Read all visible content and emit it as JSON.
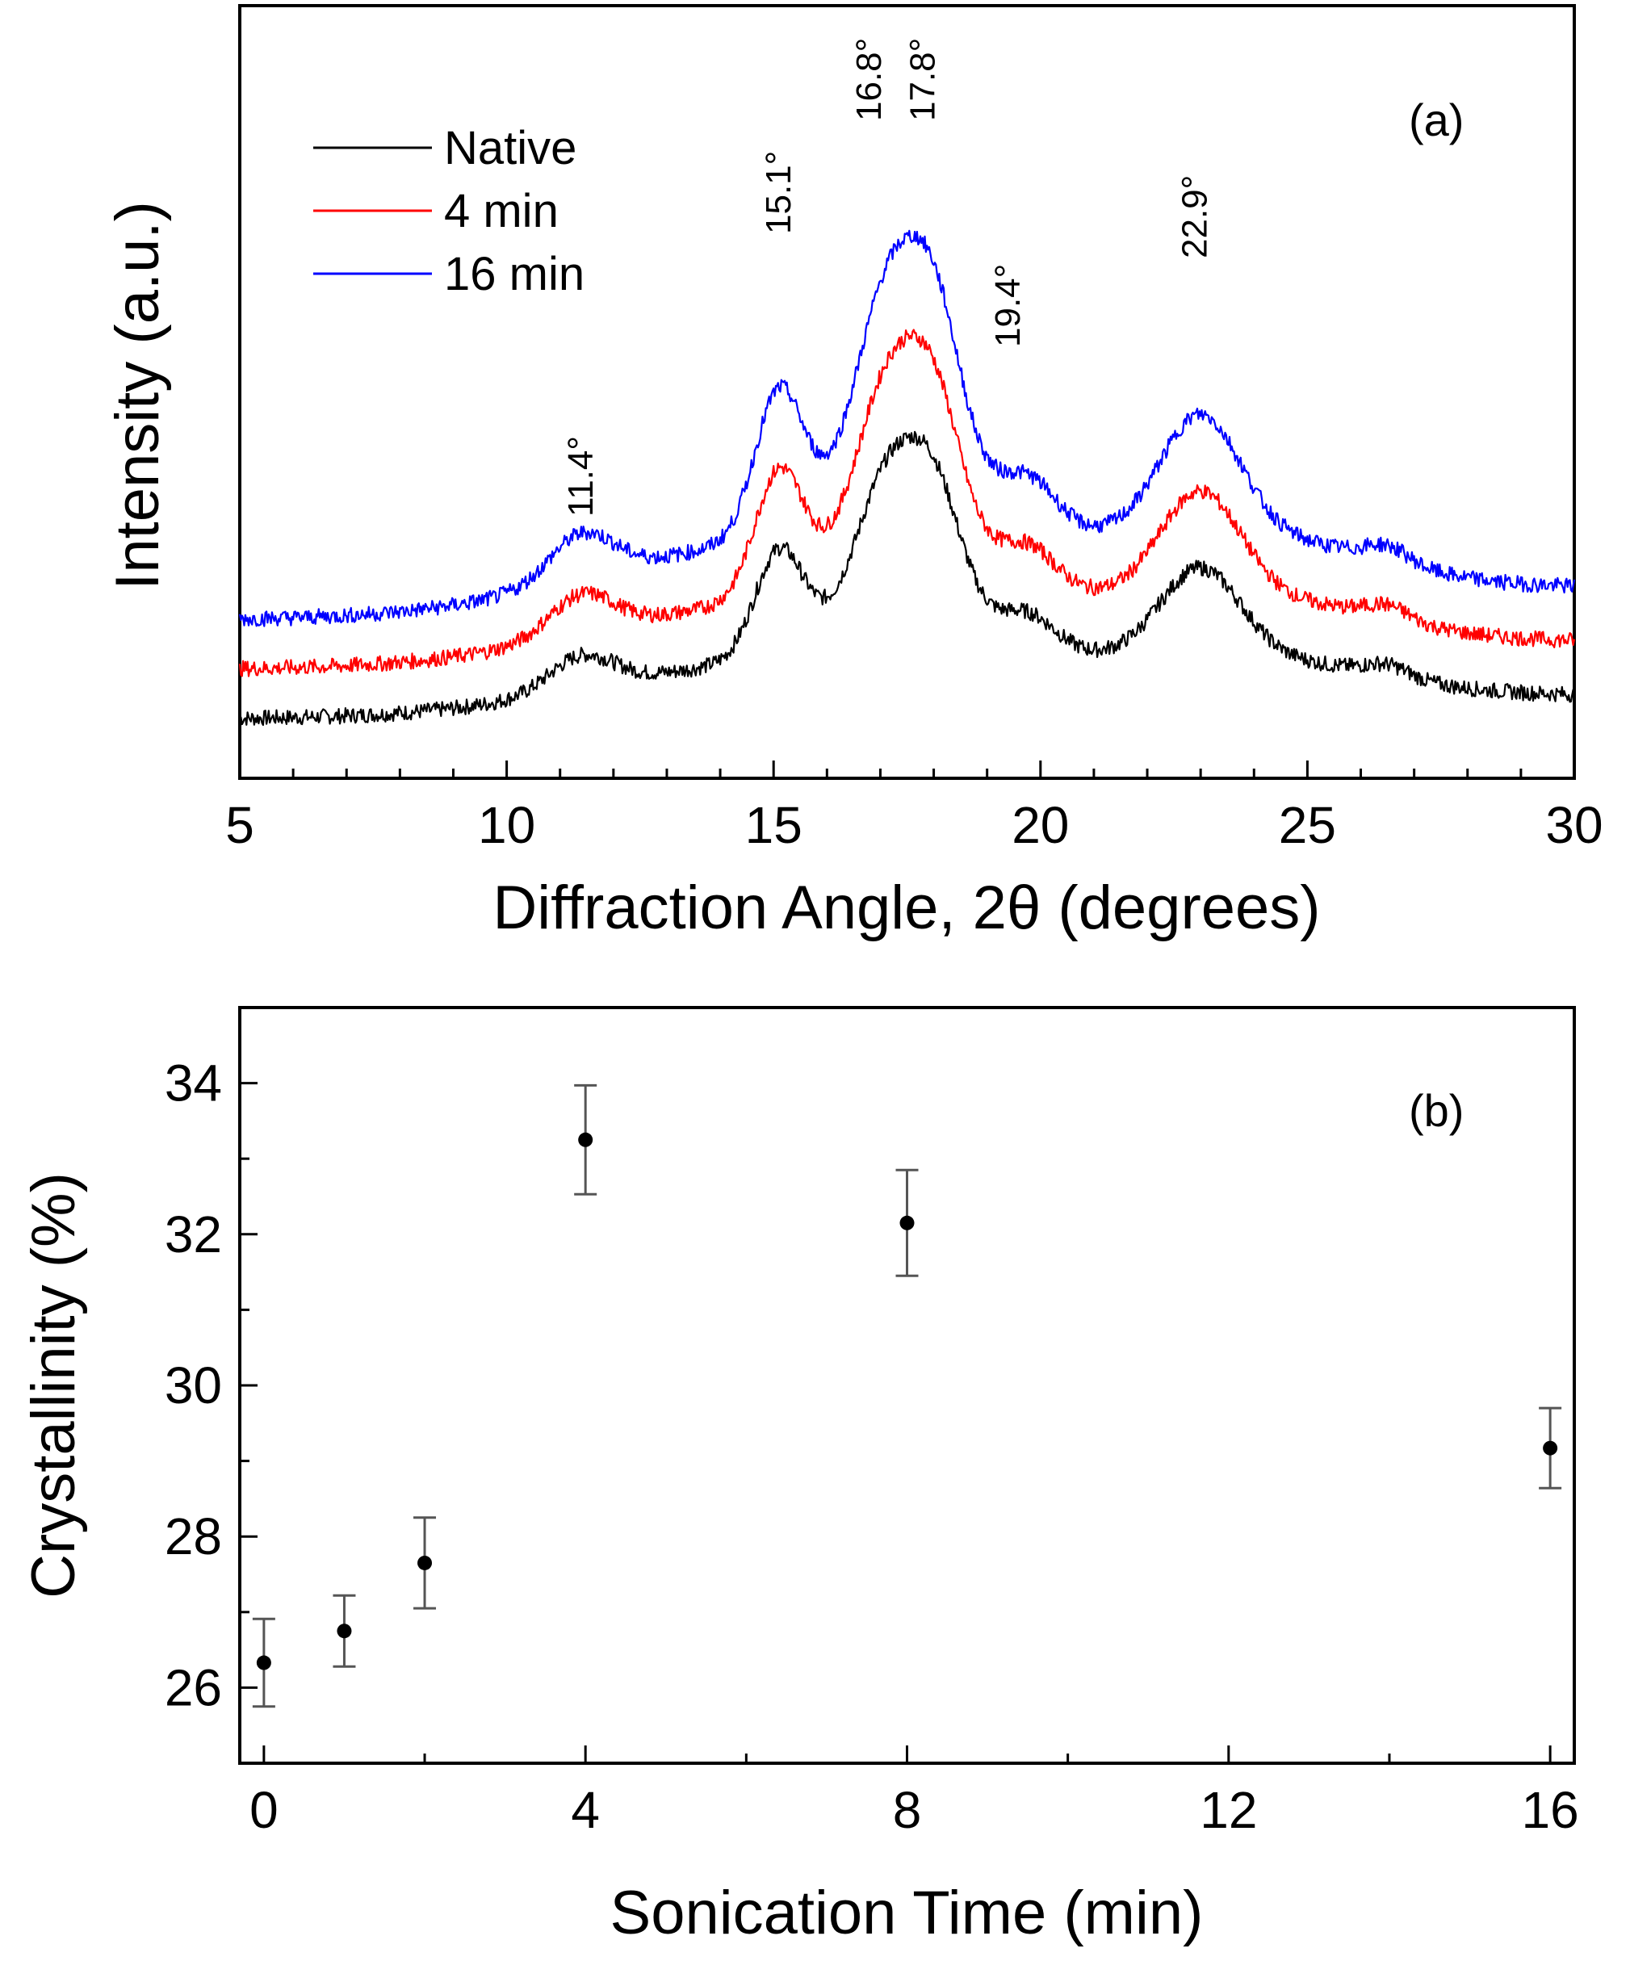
{
  "chart_data": [
    {
      "panel": "(a)",
      "type": "line",
      "xlabel": "Diffraction Angle, 2θ (degrees)",
      "ylabel": "Intensity (a.u.)",
      "xlim": [
        5,
        30
      ],
      "xticks": [
        "5",
        "10",
        "15",
        "20",
        "25",
        "30"
      ],
      "legend_position": "top-left",
      "series": [
        {
          "name": "Native",
          "color": "#000000",
          "offset": 0
        },
        {
          "name": "4 min",
          "color": "#ff0000",
          "offset": 0.55
        },
        {
          "name": "16 min",
          "color": "#0000ff",
          "offset": 1.1
        }
      ],
      "peaks": [
        {
          "label": "11.4°",
          "x": 11.4
        },
        {
          "label": "15.1°",
          "x": 15.1
        },
        {
          "label": "16.8°",
          "x": 16.8
        },
        {
          "label": "17.8°",
          "x": 17.8
        },
        {
          "label": "19.4°",
          "x": 19.4
        },
        {
          "label": "22.9°",
          "x": 22.9
        }
      ]
    },
    {
      "panel": "(b)",
      "type": "scatter",
      "xlabel": "Sonication Time (min)",
      "ylabel": "Crystallinity (%)",
      "xlim": [
        -0.3,
        16.3
      ],
      "ylim": [
        25,
        35
      ],
      "xticks": [
        "0",
        "4",
        "8",
        "12",
        "16"
      ],
      "yticks": [
        "26",
        "28",
        "30",
        "32",
        "34"
      ],
      "points": [
        {
          "x": 0,
          "y": 26.33,
          "err": 0.58
        },
        {
          "x": 1,
          "y": 26.75,
          "err": 0.47
        },
        {
          "x": 2,
          "y": 27.65,
          "err": 0.6
        },
        {
          "x": 4,
          "y": 33.25,
          "err": 0.72
        },
        {
          "x": 8,
          "y": 32.15,
          "err": 0.7
        },
        {
          "x": 16,
          "y": 29.17,
          "err": 0.53
        }
      ]
    }
  ]
}
